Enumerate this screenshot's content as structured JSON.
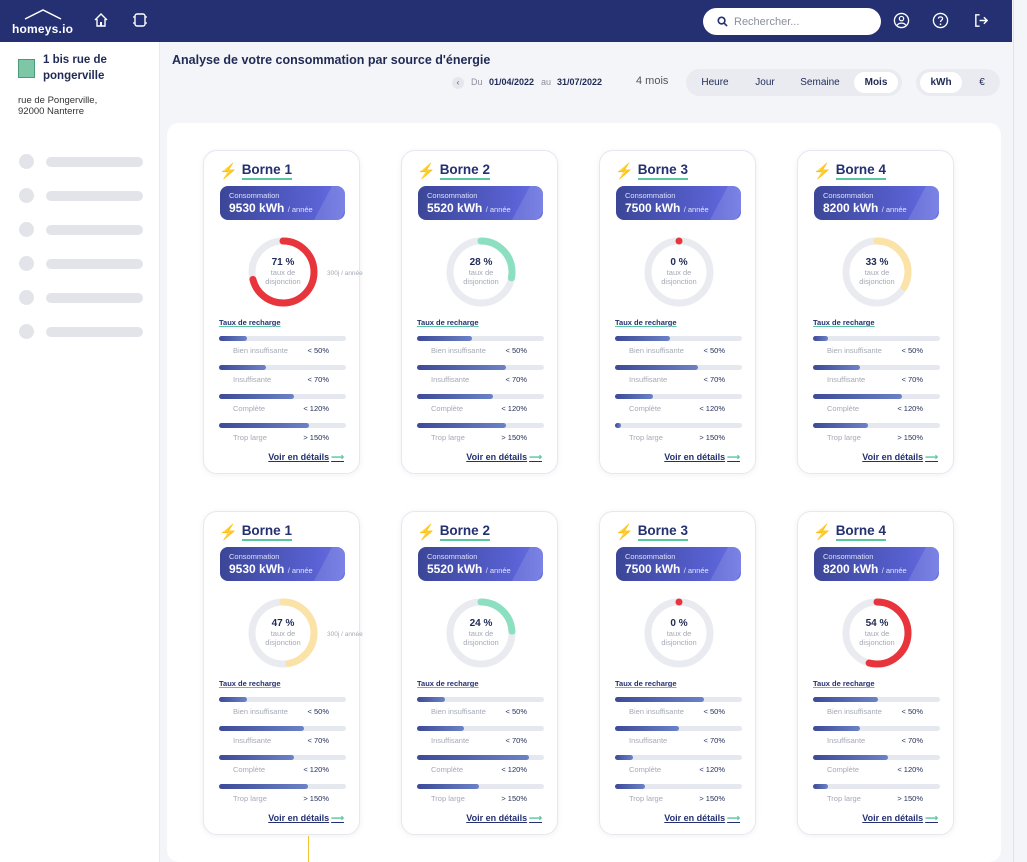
{
  "app": {
    "logo_text": "homeys.io",
    "search_placeholder": "Rechercher..."
  },
  "sidebar": {
    "site_name": "1 bis rue de pongerville",
    "address_line1": "rue de Pongerville,",
    "address_line2": "92000 Nanterre"
  },
  "header": {
    "title": "Analyse de votre consommation par source d'énergie",
    "from_label": "Du",
    "from_date": "01/04/2022",
    "to_label": "au",
    "to_date": "31/07/2022",
    "duration": "4 mois",
    "periods": [
      "Heure",
      "Jour",
      "Semaine",
      "Mois"
    ],
    "active_period": "Mois",
    "units": [
      "kWh",
      "€"
    ],
    "active_unit": "kWh"
  },
  "labels": {
    "conso_label": "Consommation",
    "unit_suffix": "/ année",
    "gauge_label_1": "taux de",
    "gauge_label_2": "disjonction",
    "recharge_title": "Taux de recharge",
    "details_link": "Voir en détails",
    "side_note": "300j / année"
  },
  "recharge_labels": [
    "Bien insuffisante",
    "Insuffisante",
    "Complète",
    "Trop large"
  ],
  "recharge_thresholds": [
    "< 50%",
    "< 70%",
    "< 120%",
    "> 150%"
  ],
  "colors": {
    "red": "#e8343b",
    "green": "#8ddfc2",
    "yellow": "#fbe3a8",
    "track": "#eaebf0"
  },
  "cards": [
    {
      "name": "Borne 1",
      "kwh": "9530 kWh",
      "pct": "71 %",
      "pct_value": 0.71,
      "color": "red",
      "side_note": true,
      "bars": [
        0.22,
        0.37,
        0.59,
        0.71
      ]
    },
    {
      "name": "Borne 2",
      "kwh": "5520 kWh",
      "pct": "28 %",
      "pct_value": 0.28,
      "color": "green",
      "side_note": false,
      "bars": [
        0.43,
        0.7,
        0.6,
        0.7
      ]
    },
    {
      "name": "Borne 3",
      "kwh": "7500 kWh",
      "pct": "0 %",
      "pct_value": 0,
      "color": "red",
      "side_note": false,
      "bars": [
        0.43,
        0.65,
        0.3,
        0.05
      ]
    },
    {
      "name": "Borne 4",
      "kwh": "8200 kWh",
      "pct": "33 %",
      "pct_value": 0.33,
      "color": "yellow",
      "side_note": false,
      "bars": [
        0.12,
        0.37,
        0.7,
        0.43
      ]
    },
    {
      "name": "Borne 1",
      "kwh": "9530 kWh",
      "pct": "47 %",
      "pct_value": 0.47,
      "color": "yellow",
      "side_note": true,
      "bars": [
        0.22,
        0.67,
        0.59,
        0.7
      ]
    },
    {
      "name": "Borne 2",
      "kwh": "5520 kWh",
      "pct": "24 %",
      "pct_value": 0.24,
      "color": "green",
      "side_note": false,
      "bars": [
        0.22,
        0.37,
        0.88,
        0.49
      ]
    },
    {
      "name": "Borne 3",
      "kwh": "7500 kWh",
      "pct": "0 %",
      "pct_value": 0,
      "color": "red",
      "side_note": false,
      "bars": [
        0.7,
        0.5,
        0.14,
        0.24
      ]
    },
    {
      "name": "Borne 4",
      "kwh": "8200 kWh",
      "pct": "54 %",
      "pct_value": 0.54,
      "color": "red",
      "side_note": false,
      "bars": [
        0.51,
        0.37,
        0.59,
        0.12
      ]
    }
  ]
}
